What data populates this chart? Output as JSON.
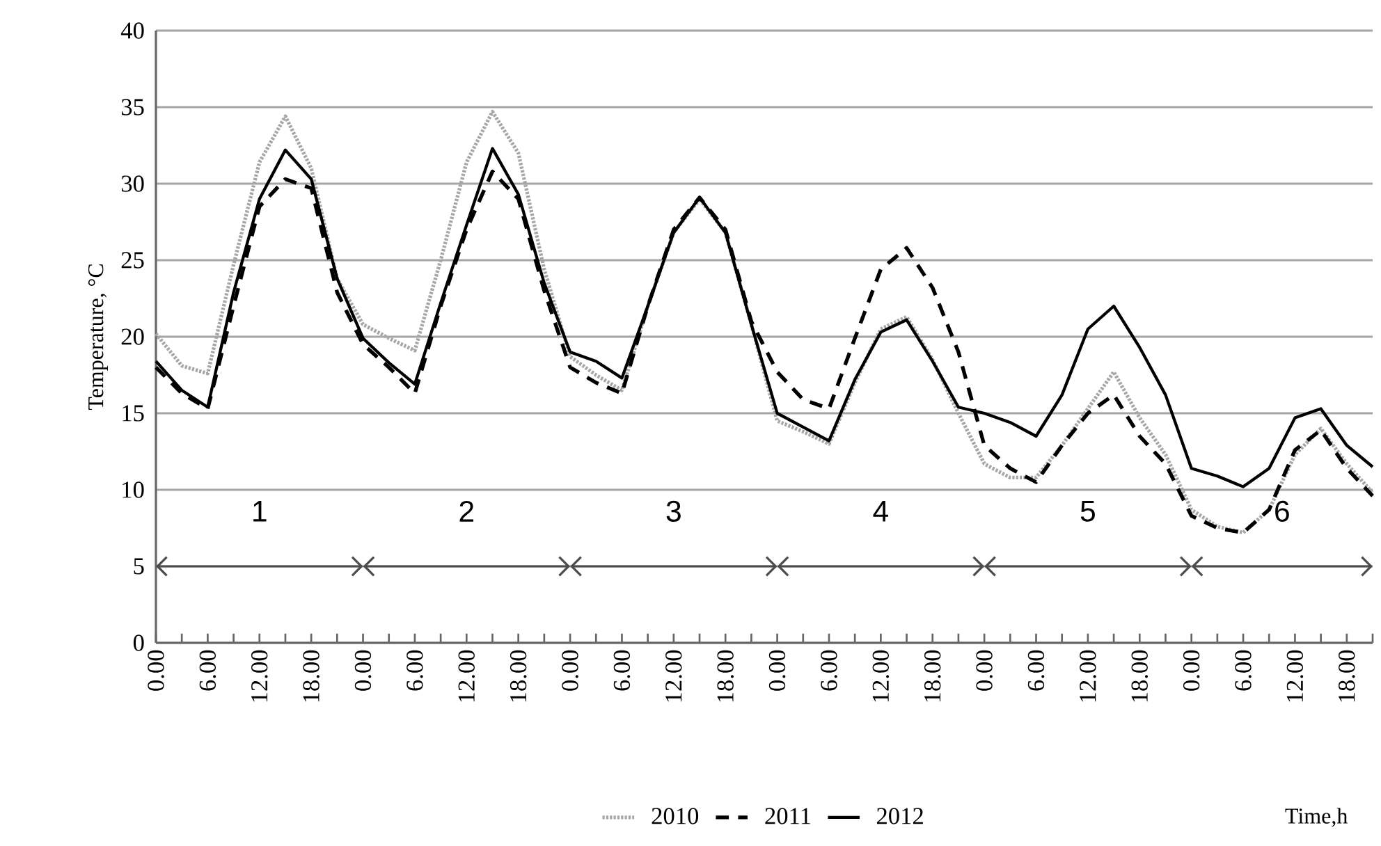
{
  "chart_data": {
    "type": "line",
    "xlabel": "Time,h",
    "ylabel": "Temperature, °C",
    "categories": [
      "0.00",
      null,
      "6.00",
      null,
      "12.00",
      null,
      "18.00",
      null,
      "0.00",
      null,
      "6.00",
      null,
      "12.00",
      null,
      "18.00",
      null,
      "0.00",
      null,
      "6.00",
      null,
      "12.00",
      null,
      "18.00",
      null,
      "0.00",
      null,
      "6.00",
      null,
      "12.00",
      null,
      "18.00",
      null,
      "0.00",
      null,
      "6.00",
      null,
      "12.00",
      null,
      "18.00",
      null,
      "0.00",
      null,
      "6.00",
      null,
      "12.00",
      null,
      "18.00",
      null
    ],
    "series": [
      {
        "name": "2010",
        "color": "#a6a6a6",
        "line_style": "dotted",
        "values": [
          20.2,
          18.1,
          17.6,
          24.7,
          31.4,
          34.4,
          31,
          23.8,
          20.8,
          19.9,
          19.1,
          25,
          31.4,
          34.7,
          32,
          24.4,
          18.7,
          17.5,
          16.5,
          22,
          26.8,
          29,
          26.8,
          20.8,
          14.5,
          13.8,
          13,
          17,
          20.5,
          21.3,
          18.5,
          15,
          11.7,
          10.8,
          10.8,
          12.9,
          15.3,
          17.7,
          14.7,
          12.3,
          8.7,
          7.6,
          7.2,
          8.7,
          12.3,
          14,
          11.7,
          9.8
        ]
      },
      {
        "name": "2011",
        "color": "#000000",
        "line_style": "dashed",
        "values": [
          18,
          16.3,
          15.3,
          22,
          28.5,
          30.3,
          29.7,
          22.9,
          19.5,
          18,
          16.3,
          22,
          27,
          30.8,
          29,
          23,
          18,
          17,
          16.3,
          22,
          27,
          29.1,
          27,
          21,
          17.7,
          15.9,
          15.3,
          19.9,
          24.4,
          25.8,
          23.2,
          19,
          12.9,
          11.4,
          10.5,
          12.9,
          15,
          16.2,
          13.5,
          11.7,
          8.3,
          7.5,
          7.2,
          8.7,
          12.6,
          13.9,
          11.4,
          9.6
        ]
      },
      {
        "name": "2012",
        "color": "#000000",
        "line_style": "solid",
        "values": [
          18.4,
          16.5,
          15.4,
          22.9,
          29,
          32.2,
          30.3,
          23.8,
          19.9,
          18.3,
          16.9,
          22.2,
          27.3,
          32.3,
          29.3,
          23.5,
          19,
          18.4,
          17.3,
          22,
          26.8,
          29.1,
          26.8,
          20.8,
          15,
          14.1,
          13.2,
          17.2,
          20.3,
          21.1,
          18.4,
          15.4,
          15,
          14.4,
          13.5,
          16.2,
          20.5,
          22,
          19.3,
          16.2,
          11.4,
          10.9,
          10.2,
          11.4,
          14.7,
          15.3,
          12.9,
          11.5
        ]
      }
    ],
    "ylim": [
      0,
      40
    ],
    "yticks": [
      0,
      5,
      10,
      15,
      20,
      25,
      30,
      35,
      40
    ],
    "annotations": [
      "1",
      "2",
      "3",
      "4",
      "5",
      "6"
    ],
    "grid": "y",
    "legend": "bottom",
    "marker": "none"
  }
}
